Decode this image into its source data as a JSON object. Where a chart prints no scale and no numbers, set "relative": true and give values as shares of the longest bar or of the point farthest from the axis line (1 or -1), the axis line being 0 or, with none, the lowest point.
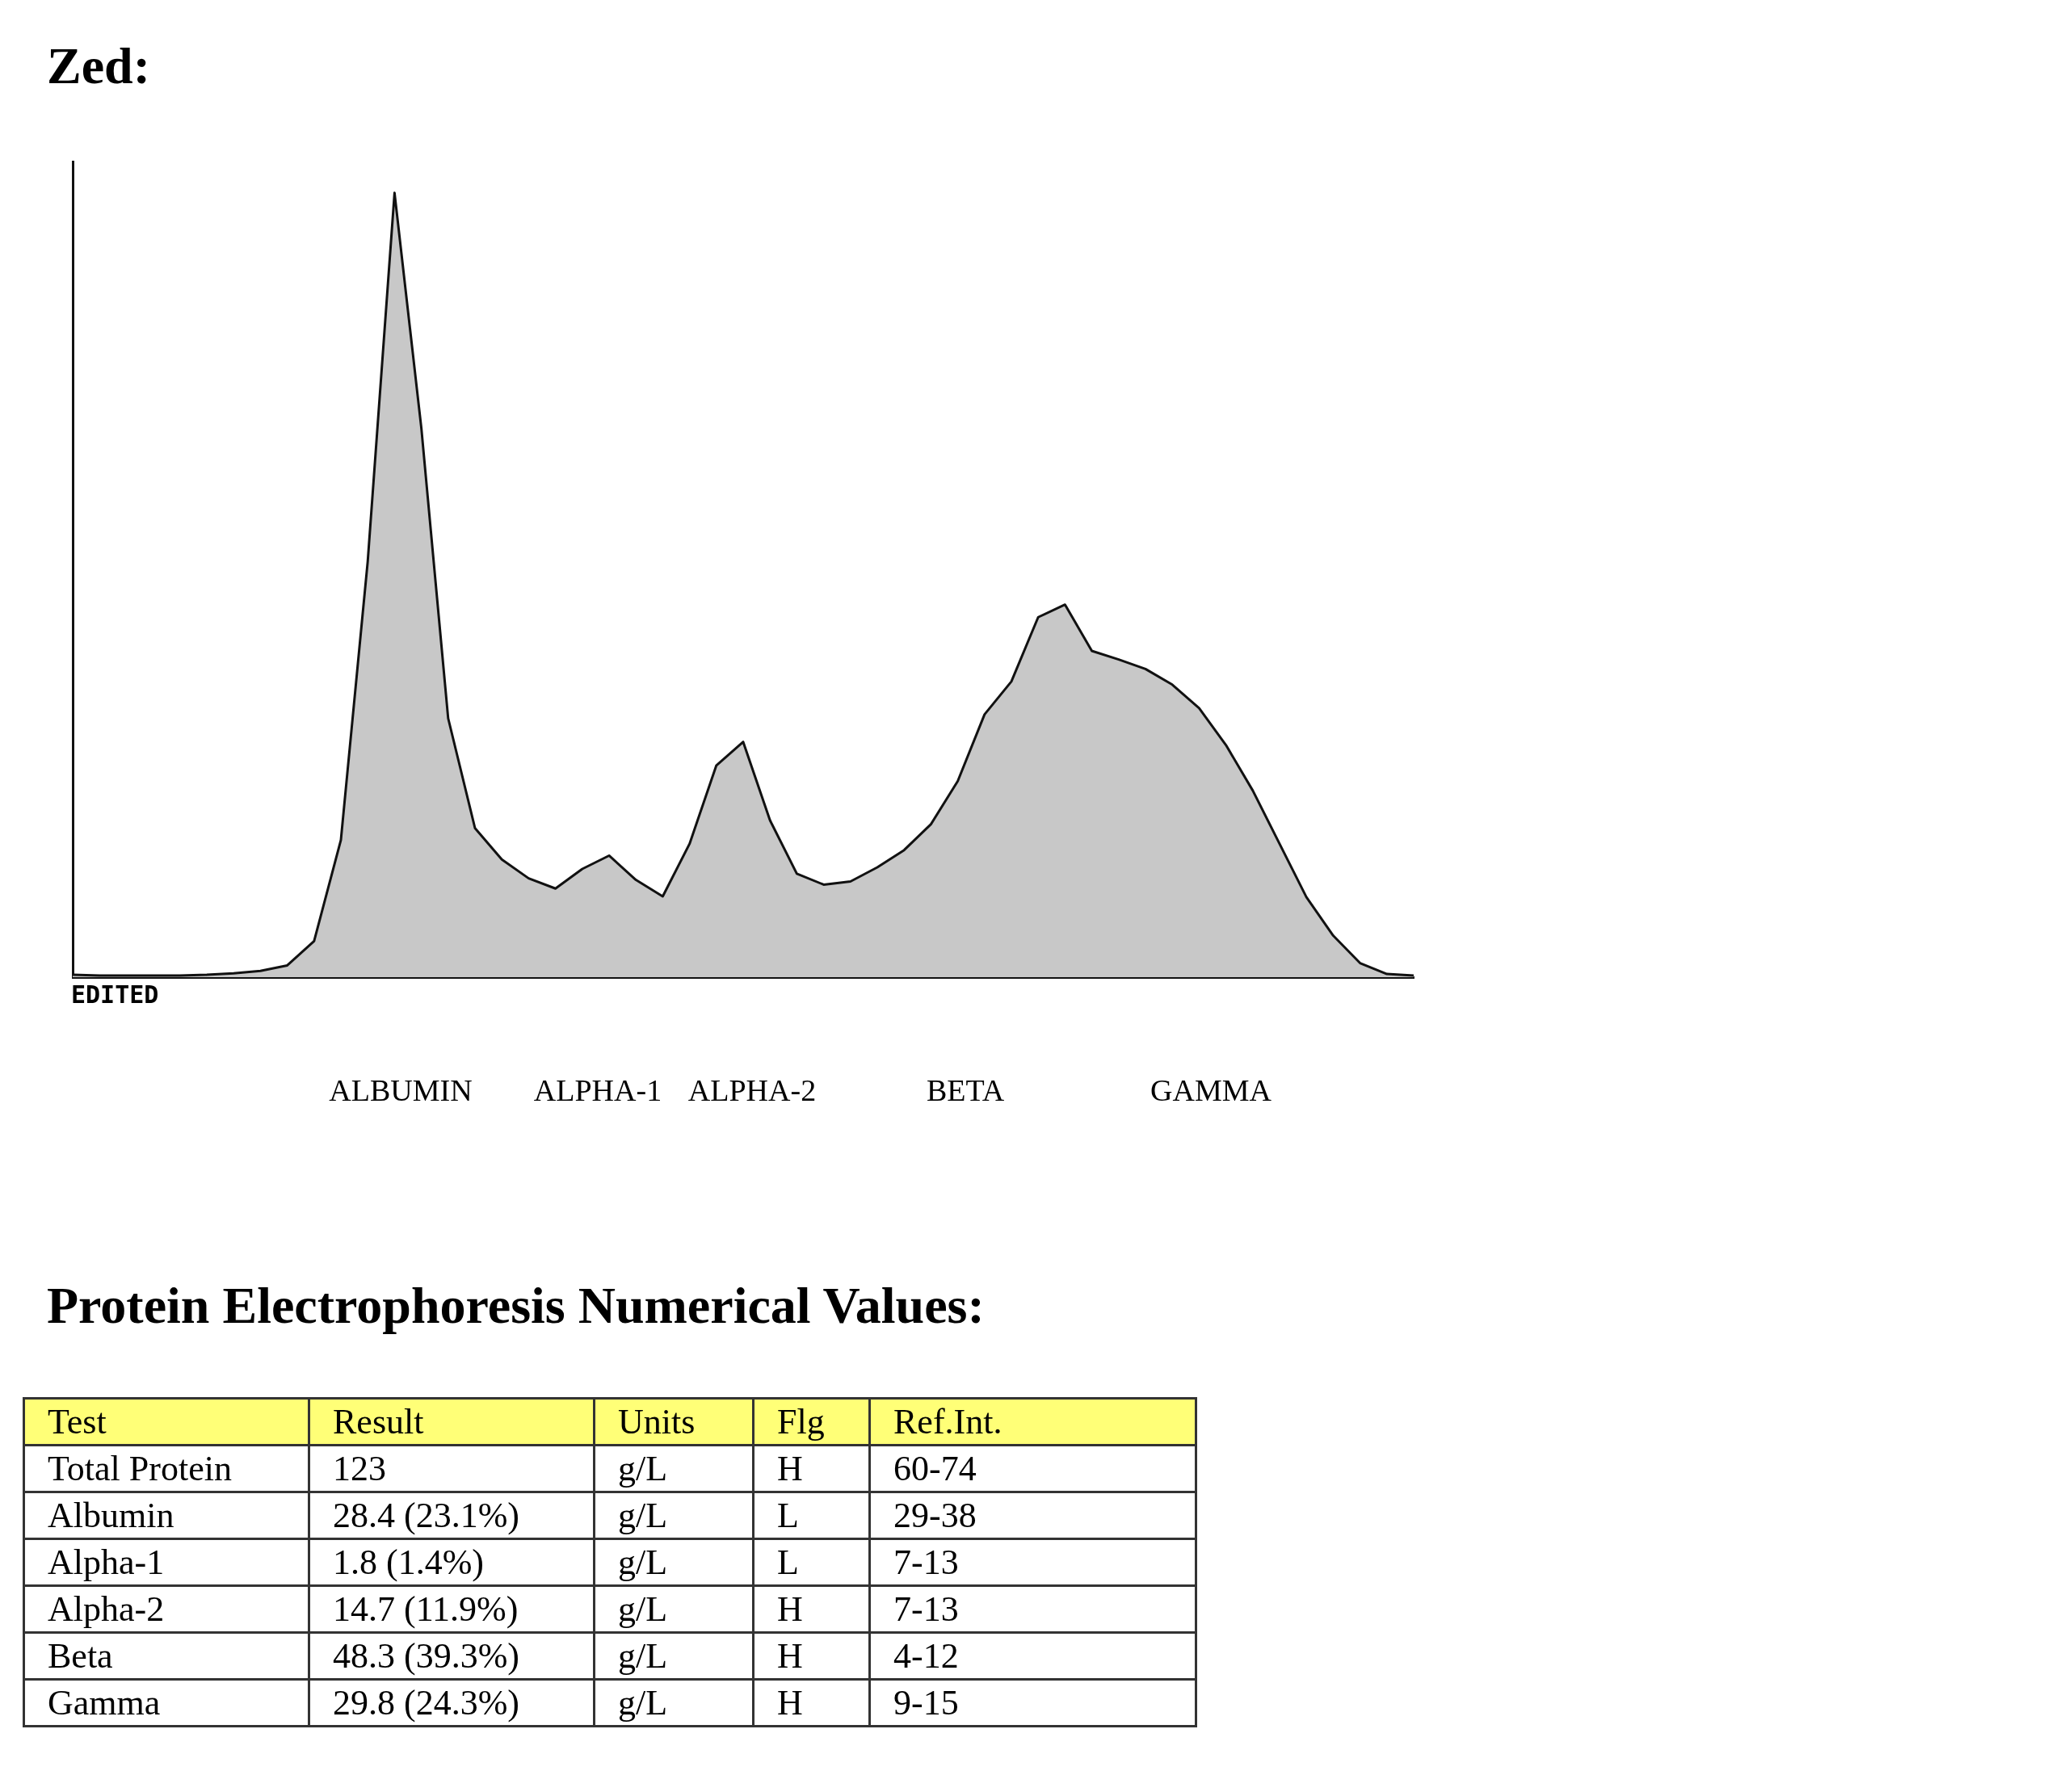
{
  "chart_data": [
    {
      "type": "area",
      "title": "Zed:",
      "relative": true,
      "grid": false,
      "legend": false,
      "categories": [
        null,
        null,
        null,
        null,
        null,
        null,
        null,
        null,
        null,
        null,
        null,
        null,
        null,
        null,
        null,
        null,
        null,
        null,
        null,
        null,
        null,
        null,
        null,
        null,
        null,
        null,
        null,
        null,
        null,
        null,
        null,
        null,
        null,
        null,
        null,
        null,
        null,
        null,
        null,
        null,
        null,
        null,
        null,
        null,
        null,
        null,
        null,
        null,
        null,
        null,
        null
      ],
      "series": [
        {
          "color": "#c8c8c8",
          "values": [
            0.003,
            0.002,
            0.002,
            0.002,
            0.002,
            0.003,
            0.005,
            0.008,
            0.015,
            0.046,
            0.175,
            0.53,
            1,
            0.7,
            0.33,
            0.19,
            0.15,
            0.126,
            0.113,
            0.138,
            0.155,
            0.124,
            0.103,
            0.17,
            0.27,
            0.3,
            0.2,
            0.132,
            0.118,
            0.122,
            0.14,
            0.162,
            0.195,
            0.25,
            0.335,
            0.377,
            0.459,
            0.475,
            0.416,
            0.405,
            0.393,
            0.373,
            0.343,
            0.296,
            0.238,
            0.17,
            0.102,
            0.053,
            0.018,
            0.004,
            0.002
          ]
        }
      ],
      "annotations": [
        "EDITED",
        "ALBUMIN",
        "ALPHA-1",
        "ALPHA-2",
        "BETA",
        "GAMMA"
      ]
    },
    {
      "type": "other",
      "title": "Protein Electrophoresis Numerical Values:",
      "annotations": [
        "Test",
        "Result",
        "Units",
        "Flg",
        "Ref.Int.",
        "Total Protein",
        "123",
        "g/L",
        "H",
        "60-74",
        "Albumin",
        "28.4 (23.1%)",
        "g/L",
        "L",
        "29-38",
        "Alpha-1",
        "1.8 (1.4%)",
        "g/L",
        "L",
        "7-13",
        "Alpha-2",
        "14.7 (11.9%)",
        "g/L",
        "H",
        "7-13",
        "Beta",
        "48.3 (39.3%)",
        "g/L",
        "H",
        "4-12",
        "Gamma",
        "29.8 (24.3%)",
        "g/L",
        "H",
        "9-15"
      ]
    }
  ]
}
